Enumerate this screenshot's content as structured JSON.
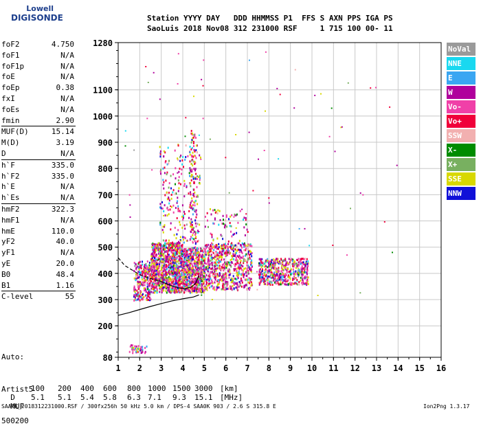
{
  "logo": {
    "line1": "Lowell",
    "line2": "DIGISONDE"
  },
  "header": {
    "row1": "Station YYYY DAY   DDD HHMMSS P1  FFS S AXN PPS IGA PS",
    "row2": "SaoLuis 2018 Nov08 312 231000 RSF     1 715 100 00- 11"
  },
  "params": [
    {
      "label": "foF2",
      "value": "4.750"
    },
    {
      "label": "foF1",
      "value": "N/A"
    },
    {
      "label": "foF1p",
      "value": "N/A"
    },
    {
      "label": "foE",
      "value": "N/A"
    },
    {
      "label": "foEp",
      "value": "0.38"
    },
    {
      "label": "fxI",
      "value": "N/A"
    },
    {
      "label": "foEs",
      "value": "N/A"
    },
    {
      "label": "fmin",
      "value": "2.90"
    },
    {
      "label": "MUF(D)",
      "value": "15.14"
    },
    {
      "label": "M(D)",
      "value": "3.19"
    },
    {
      "label": "D",
      "value": "N/A"
    },
    {
      "label": "h`F",
      "value": "335.0"
    },
    {
      "label": "h`F2",
      "value": "335.0"
    },
    {
      "label": "h`E",
      "value": "N/A"
    },
    {
      "label": "h`Es",
      "value": "N/A"
    },
    {
      "label": "hmF2",
      "value": "322.3"
    },
    {
      "label": "hmF1",
      "value": "N/A"
    },
    {
      "label": "hmE",
      "value": "110.0"
    },
    {
      "label": "yF2",
      "value": "40.0"
    },
    {
      "label": "yF1",
      "value": "N/A"
    },
    {
      "label": "yE",
      "value": "20.0"
    },
    {
      "label": "B0",
      "value": "48.4"
    },
    {
      "label": "B1",
      "value": "1.16"
    },
    {
      "label": "C-level",
      "value": "55"
    }
  ],
  "auto": {
    "line1": "Auto:",
    "line2": "Artist5",
    "line3": "500200"
  },
  "legend": [
    {
      "label": "NoVal",
      "color": "#9a9a9a"
    },
    {
      "label": "NNE",
      "color": "#19d8f0"
    },
    {
      "label": "E",
      "color": "#3aa6f2"
    },
    {
      "label": "W",
      "color": "#b0009c"
    },
    {
      "label": "Vo-",
      "color": "#f040a8"
    },
    {
      "label": "Vo+",
      "color": "#f0003a"
    },
    {
      "label": "SSW",
      "color": "#f2b0b0"
    },
    {
      "label": "X-",
      "color": "#008c00"
    },
    {
      "label": "X+",
      "color": "#78b060"
    },
    {
      "label": "SSE",
      "color": "#d8d800"
    },
    {
      "label": "NNW",
      "color": "#1010d8"
    }
  ],
  "muf_table": {
    "d_label": "D",
    "d_values": [
      "100",
      "200",
      "400",
      "600",
      "800",
      "1000",
      "1500",
      "3000"
    ],
    "d_unit": "[km]",
    "muf_label": "MUF",
    "muf_values": [
      "5.1",
      "5.1",
      "5.4",
      "5.8",
      "6.3",
      "7.1",
      "9.3",
      "15.1"
    ],
    "muf_unit": "[MHz]"
  },
  "footer": {
    "left": "SAA0K_2018312231000.RSF / 300fx256h 50 kHz 5.0 km / DPS-4 SAA0K 903 / 2.6 S 315.8 E",
    "right": "Ion2Png 1.3.17"
  },
  "chart_data": {
    "type": "scatter",
    "xlim": [
      1,
      16
    ],
    "ylim": [
      80,
      1280
    ],
    "x_ticks": [
      1,
      2,
      3,
      4,
      5,
      6,
      7,
      8,
      9,
      10,
      11,
      12,
      13,
      14,
      15,
      16
    ],
    "y_ticks": [
      80,
      200,
      300,
      400,
      500,
      600,
      700,
      800,
      900,
      1000,
      1100,
      1280
    ],
    "grid": true,
    "clusters": [
      {
        "x": [
          1.7,
          2.5
        ],
        "y": [
          300,
          450
        ],
        "n": 260
      },
      {
        "x": [
          2.5,
          4.0
        ],
        "y": [
          330,
          520
        ],
        "n": 1000
      },
      {
        "x": [
          4.0,
          5.0
        ],
        "y": [
          330,
          500
        ],
        "n": 600
      },
      {
        "x": [
          5.0,
          7.2
        ],
        "y": [
          340,
          520
        ],
        "n": 650
      },
      {
        "x": [
          7.5,
          9.8
        ],
        "y": [
          360,
          460
        ],
        "n": 500
      },
      {
        "x": [
          2.9,
          4.8
        ],
        "y": [
          520,
          900
        ],
        "n": 220
      },
      {
        "x": [
          5.0,
          7.0
        ],
        "y": [
          520,
          650
        ],
        "n": 70
      },
      {
        "x": [
          1.5,
          2.3
        ],
        "y": [
          100,
          130
        ],
        "n": 45
      },
      {
        "x": [
          4.3,
          4.6
        ],
        "y": [
          500,
          950
        ],
        "n": 120
      }
    ],
    "lines": [
      {
        "name": "trace-lower",
        "style": "solid",
        "x": [
          1,
          1.5,
          2.0,
          2.5,
          3.0,
          3.5,
          4.0,
          4.5,
          4.75
        ],
        "y": [
          240,
          250,
          262,
          274,
          285,
          295,
          303,
          310,
          318
        ]
      },
      {
        "name": "trace-upper",
        "style": "dashed",
        "x": [
          1.0,
          1.3,
          1.7,
          2.0,
          2.5,
          2.9
        ],
        "y": [
          460,
          430,
          410,
          395,
          380,
          372
        ]
      },
      {
        "name": "trace-f2",
        "style": "solid",
        "x": [
          2.9,
          3.2,
          3.5,
          3.8,
          4.1,
          4.4,
          4.6,
          4.75
        ],
        "y": [
          372,
          362,
          352,
          345,
          342,
          348,
          362,
          392
        ]
      }
    ]
  }
}
